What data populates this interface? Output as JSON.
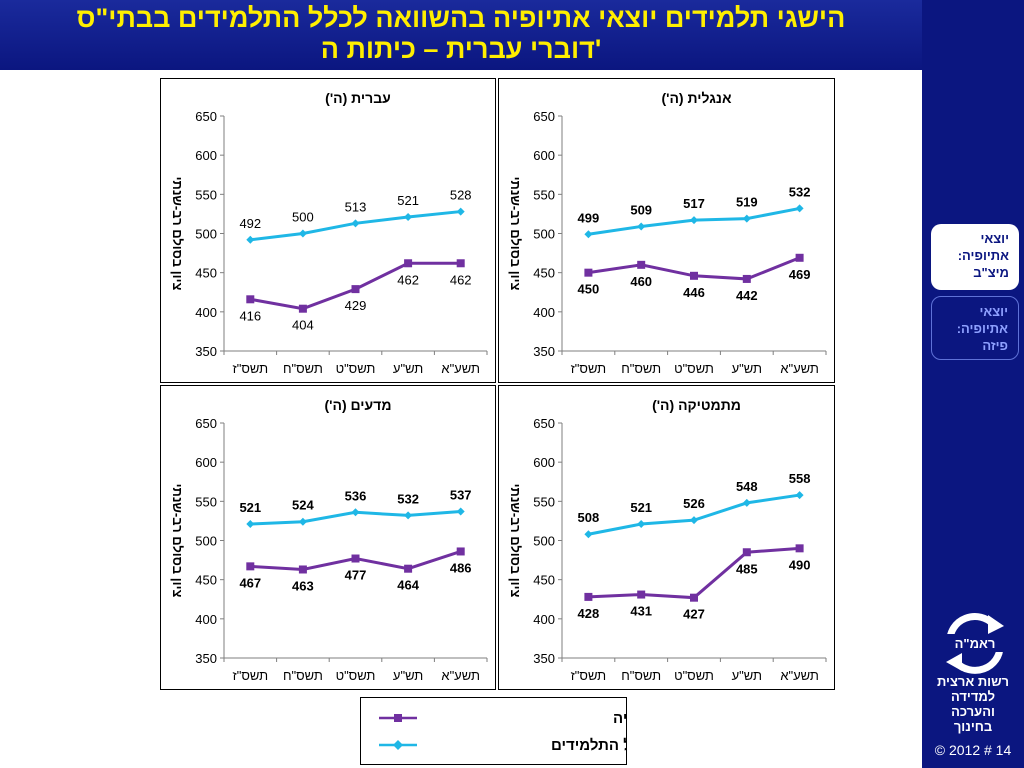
{
  "slide": {
    "title_line1": "הישגי תלמידים יוצאי אתיופיה בהשוואה לכלל התלמידים בבתי\"ס",
    "title_line2": "דוברי עברית – כיתות ה'"
  },
  "nav": {
    "active": [
      "יוצאי",
      "אתיופיה:",
      "מיצ\"ב"
    ],
    "inactive": [
      "יוצאי",
      "אתיופיה:",
      "פיזה"
    ]
  },
  "logo": {
    "badge": "ראמ\"ה",
    "text": [
      "רשות ארצית",
      "למדידה",
      "והערכה",
      "בחינוך"
    ]
  },
  "footer": "© 2012 # 14",
  "legend": {
    "series_ethiopia": "תלמידים יוצאי אתיופיה",
    "series_all": "כלל  התלמידים"
  },
  "colors": {
    "ethiopia": "#7030a0",
    "all": "#1fb7e6",
    "title": "#ffef00",
    "navy": "#0b1680"
  },
  "chart_data": [
    {
      "type": "line",
      "title": "עברית (ה')",
      "ylabel": "ציון בסולם רב-שנתי",
      "categories": [
        "תשס\"ז",
        "תשס\"ח",
        "תשס\"ט",
        "תש\"ע",
        "תשע\"א"
      ],
      "ylim": [
        350,
        650
      ],
      "yticks": [
        350,
        400,
        450,
        500,
        550,
        600,
        650
      ],
      "series": [
        {
          "name": "כלל  התלמידים",
          "values": [
            492,
            500,
            513,
            521,
            528
          ]
        },
        {
          "name": "תלמידים יוצאי אתיופיה",
          "values": [
            416,
            404,
            429,
            462,
            462
          ]
        }
      ],
      "grid": false,
      "bold_labels": false
    },
    {
      "type": "line",
      "title": "אנגלית (ה')",
      "ylabel": "ציון בסולם רב-שנתי",
      "categories": [
        "תשס\"ז",
        "תשס\"ח",
        "תשס\"ט",
        "תש\"ע",
        "תשע\"א"
      ],
      "ylim": [
        350,
        650
      ],
      "yticks": [
        350,
        400,
        450,
        500,
        550,
        600,
        650
      ],
      "series": [
        {
          "name": "כלל  התלמידים",
          "values": [
            499,
            509,
            517,
            519,
            532
          ]
        },
        {
          "name": "תלמידים יוצאי אתיופיה",
          "values": [
            450,
            460,
            446,
            442,
            469
          ]
        }
      ],
      "grid": false,
      "bold_labels": true
    },
    {
      "type": "line",
      "title": "מדעים (ה')",
      "ylabel": "ציון בסולם רב-שנתי",
      "categories": [
        "תשס\"ז",
        "תשס\"ח",
        "תשס\"ט",
        "תש\"ע",
        "תשע\"א"
      ],
      "ylim": [
        350,
        650
      ],
      "yticks": [
        350,
        400,
        450,
        500,
        550,
        600,
        650
      ],
      "series": [
        {
          "name": "כלל  התלמידים",
          "values": [
            521,
            524,
            536,
            532,
            537
          ]
        },
        {
          "name": "תלמידים יוצאי אתיופיה",
          "values": [
            467,
            463,
            477,
            464,
            486
          ]
        }
      ],
      "grid": false,
      "bold_labels": true
    },
    {
      "type": "line",
      "title": "מתמטיקה (ה')",
      "ylabel": "ציון בסולם רב-שנתי",
      "categories": [
        "תשס\"ז",
        "תשס\"ח",
        "תשס\"ט",
        "תש\"ע",
        "תשע\"א"
      ],
      "ylim": [
        350,
        650
      ],
      "yticks": [
        350,
        400,
        450,
        500,
        550,
        600,
        650
      ],
      "series": [
        {
          "name": "כלל  התלמידים",
          "values": [
            508,
            521,
            526,
            548,
            558
          ]
        },
        {
          "name": "תלמידים יוצאי אתיופיה",
          "values": [
            428,
            431,
            427,
            485,
            490
          ]
        }
      ],
      "grid": false,
      "bold_labels": true
    }
  ]
}
